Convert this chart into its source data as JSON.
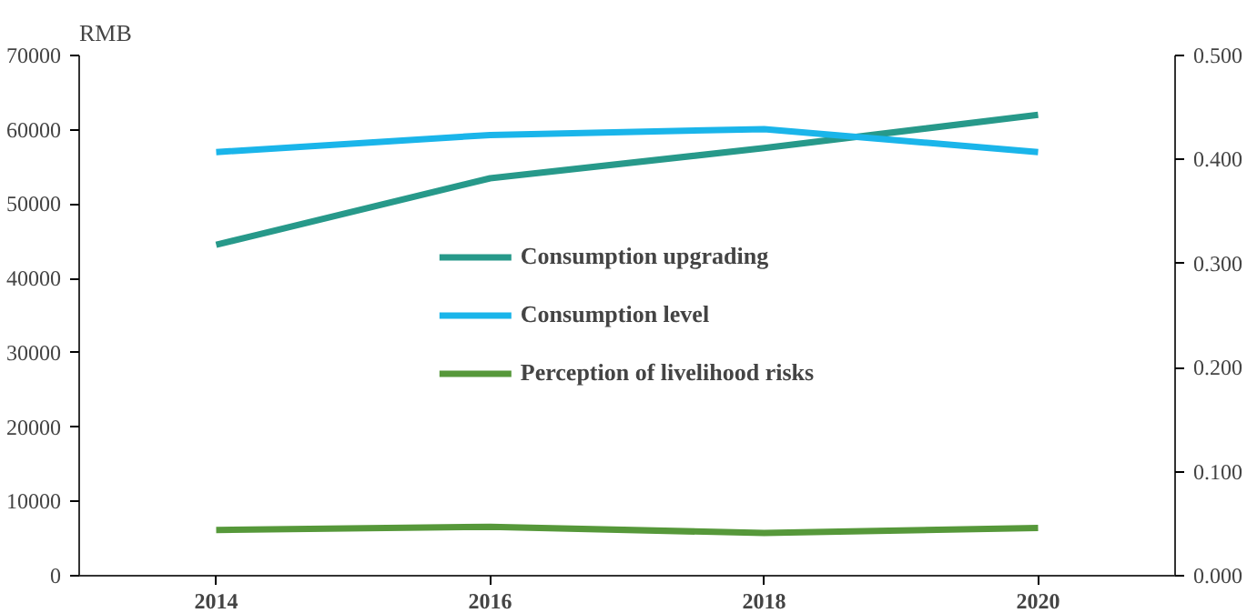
{
  "chart_data": {
    "type": "line",
    "ylabel": "RMB",
    "x": [
      2014,
      2016,
      2018,
      2020
    ],
    "xlim": [
      2013,
      2021
    ],
    "xticks": [
      2014,
      2016,
      2018,
      2020
    ],
    "ylim": [
      0,
      70000
    ],
    "yticks": [
      0,
      10000,
      20000,
      30000,
      40000,
      50000,
      60000,
      70000
    ],
    "y2lim": [
      0,
      0.5
    ],
    "y2ticks": [
      {
        "value": 0,
        "label": "0.000"
      },
      {
        "value": 0.1,
        "label": "0.100"
      },
      {
        "value": 0.2,
        "label": "0.200"
      },
      {
        "value": 0.3,
        "label": "0.300"
      },
      {
        "value": 0.4,
        "label": "0.400"
      },
      {
        "value": 0.5,
        "label": "0.500"
      }
    ],
    "series": [
      {
        "name": "Consumption upgrading",
        "color": "#27998a",
        "axis": "y2",
        "values": [
          0.318,
          0.382,
          0.411,
          0.443
        ]
      },
      {
        "name": "Consumption level",
        "color": "#1ab5ea",
        "values": [
          57000,
          59300,
          60100,
          57000
        ]
      },
      {
        "name": "Perception of livelihood risks",
        "color": "#56983a",
        "axis": "y2",
        "values": [
          0.044,
          0.047,
          0.041,
          0.046
        ]
      }
    ],
    "grid": false,
    "legend": "center",
    "marker": "none",
    "line_style": "solid"
  }
}
